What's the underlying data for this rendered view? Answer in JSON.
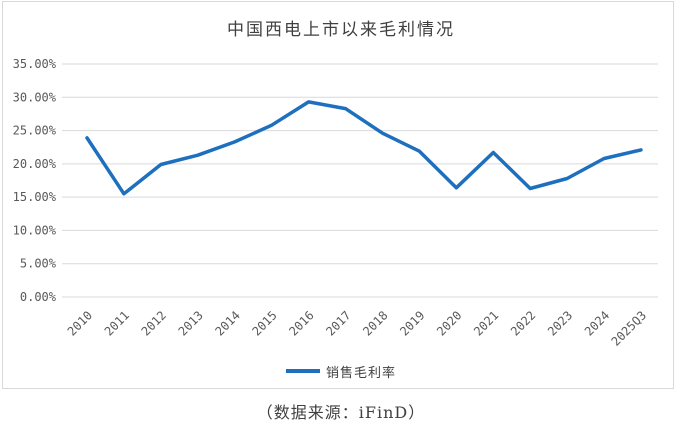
{
  "title": "中国西电上市以来毛利情况",
  "legend": {
    "label": "销售毛利率"
  },
  "source_note": "（数据来源：iFinD）",
  "colors": {
    "line": "#1E6FBE",
    "grid": "#D9D9D9",
    "axis_text": "#595959",
    "title_text": "#404040",
    "frame_border": "#D9D9D9",
    "background": "#FFFFFF"
  },
  "chart_data": {
    "type": "line",
    "title": "中国西电上市以来毛利情况",
    "categories": [
      "2010",
      "2011",
      "2012",
      "2013",
      "2014",
      "2015",
      "2016",
      "2017",
      "2018",
      "2019",
      "2020",
      "2021",
      "2022",
      "2023",
      "2024",
      "2025Q3"
    ],
    "series": [
      {
        "name": "销售毛利率",
        "values": [
          23.9,
          15.5,
          19.9,
          21.3,
          23.3,
          25.8,
          29.3,
          28.3,
          24.6,
          21.9,
          16.4,
          21.7,
          16.3,
          17.8,
          20.8,
          22.1
        ]
      }
    ],
    "xlabel": "",
    "ylabel": "",
    "ylim": [
      0,
      35
    ],
    "ytick_step": 5,
    "ytick_labels": [
      "0.00%",
      "5.00%",
      "10.00%",
      "15.00%",
      "20.00%",
      "25.00%",
      "30.00%",
      "35.00%"
    ],
    "grid": true,
    "x_label_rotation_deg": -45,
    "legend_position": "bottom"
  }
}
